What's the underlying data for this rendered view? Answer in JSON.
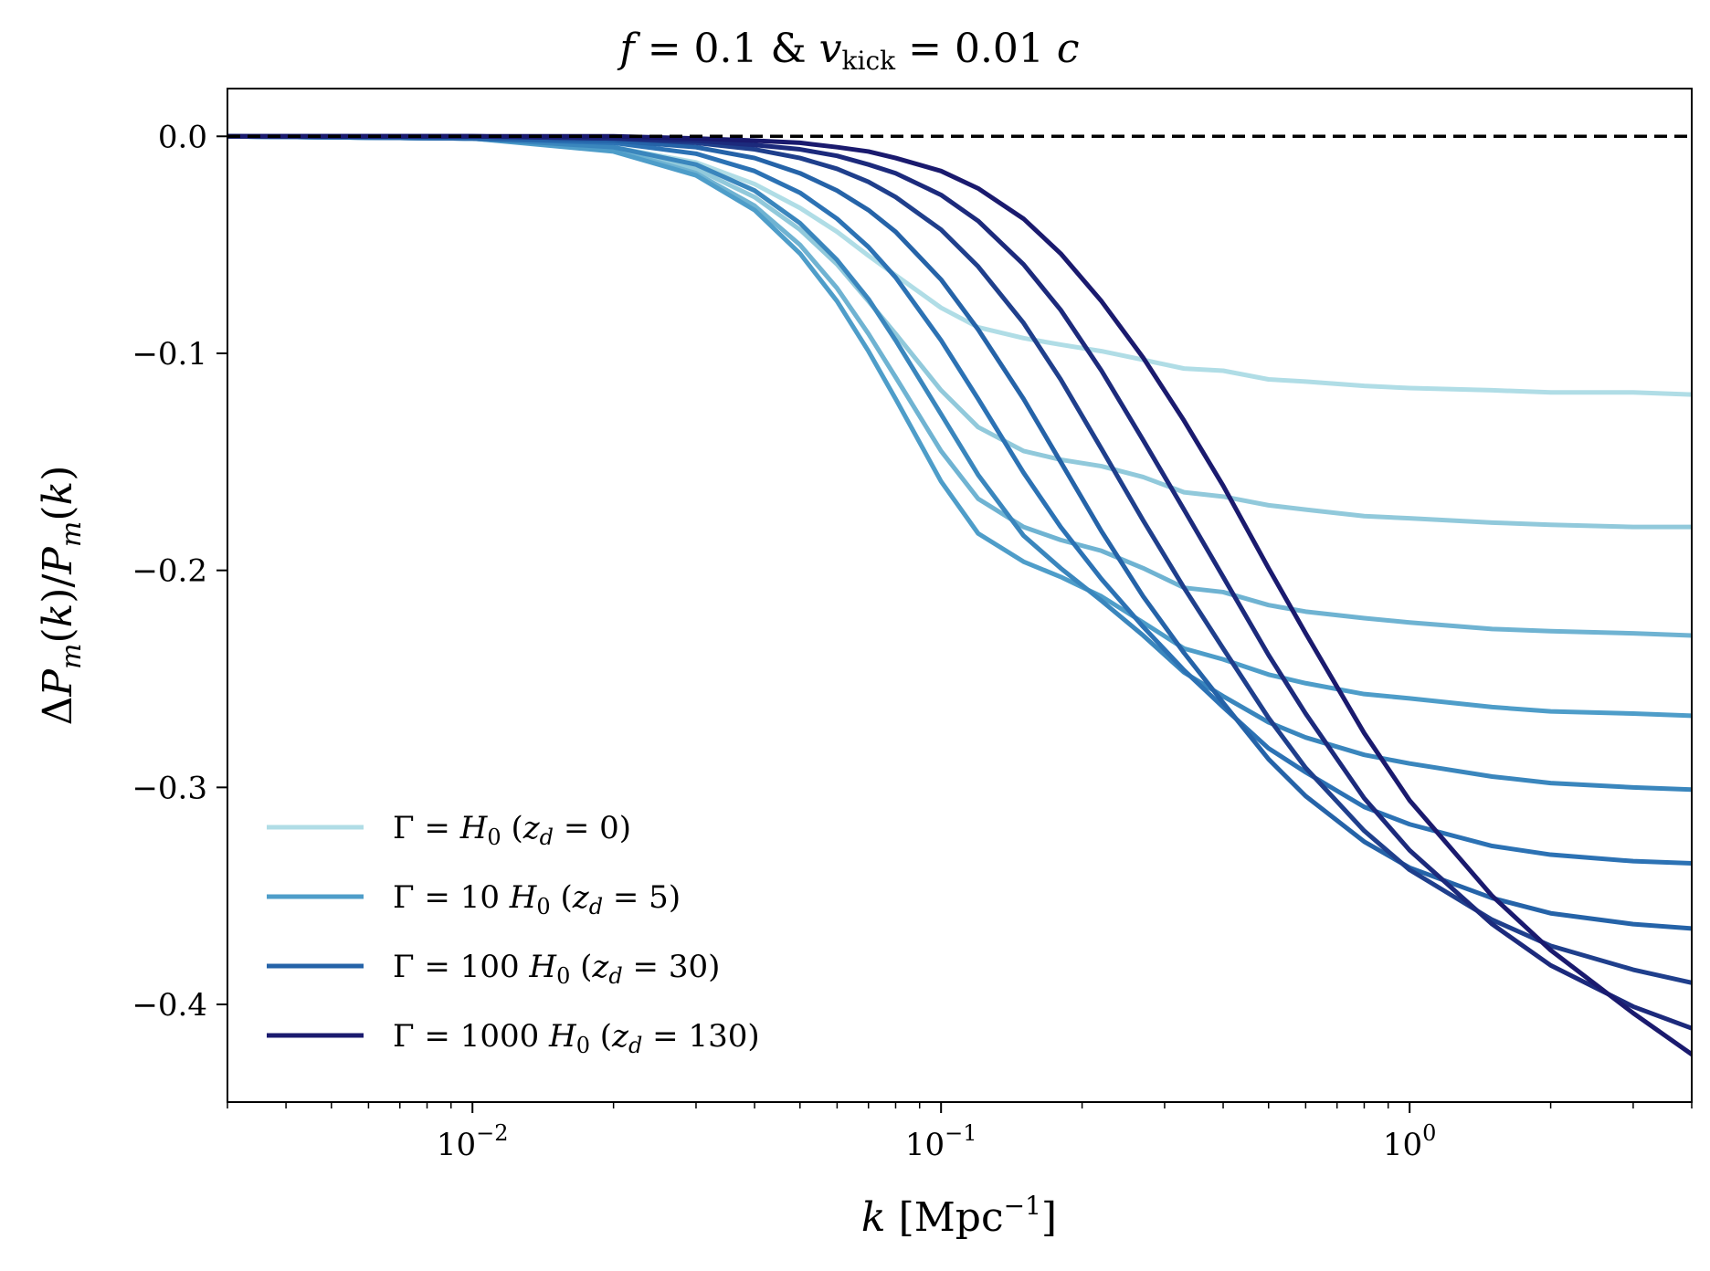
{
  "chart_data": {
    "type": "line",
    "title": "f = 0.1  &  v_kick = 0.01 c",
    "title_parts": [
      "f",
      " = 0.1  &  ",
      "v",
      "kick",
      " = 0.01 ",
      "c"
    ],
    "xlabel": "k [Mpc^-1]",
    "xlabel_parts": [
      "k",
      " [Mpc",
      "−1",
      "]"
    ],
    "ylabel": "ΔP_m(k)/P_m(k)",
    "ylabel_parts": [
      "Δ",
      "P",
      "m",
      "(",
      "k",
      ")/",
      "P",
      "m",
      "(",
      "k",
      ")"
    ],
    "xscale": "log",
    "xlim": [
      0.003,
      4.0
    ],
    "ylim": [
      -0.445,
      0.022
    ],
    "xticks": [
      {
        "value": 0.01,
        "base": "10",
        "exp": "−2"
      },
      {
        "value": 0.1,
        "base": "10",
        "exp": "−1"
      },
      {
        "value": 1,
        "base": "10",
        "exp": "0"
      }
    ],
    "yticks": [
      {
        "value": 0.0,
        "label": "0.0"
      },
      {
        "value": -0.1,
        "label": "−0.1"
      },
      {
        "value": -0.2,
        "label": "−0.2"
      },
      {
        "value": -0.3,
        "label": "−0.3"
      },
      {
        "value": -0.4,
        "label": "−0.4"
      }
    ],
    "reference_line": {
      "y": 0.0,
      "style": "dashed",
      "color": "#000000"
    },
    "grid": false,
    "legend_position": "lower-left",
    "legend": [
      {
        "label": "Γ = H₀ (z_d = 0)",
        "parts": [
          "Γ = ",
          "H",
          "0",
          " (",
          "z",
          "d",
          " = 0)"
        ],
        "color": "#b0dde6"
      },
      {
        "label": "Γ = 10 H₀ (z_d = 5)",
        "parts": [
          "Γ = 10 ",
          "H",
          "0",
          " (",
          "z",
          "d",
          " = 5)"
        ],
        "color": "#4e9dc9"
      },
      {
        "label": "Γ = 100 H₀ (z_d = 30)",
        "parts": [
          "Γ = 100 ",
          "H",
          "0",
          " (",
          "z",
          "d",
          " = 30)"
        ],
        "color": "#2563a8"
      },
      {
        "label": "Γ = 1000 H₀ (z_d = 130)",
        "parts": [
          "Γ = 1000 ",
          "H",
          "0",
          " (",
          "z",
          "d",
          " = 130)"
        ],
        "color": "#1a1a6e"
      }
    ],
    "series": [
      {
        "color": "#b0dde6",
        "x": [
          0.003,
          0.01,
          0.02,
          0.03,
          0.04,
          0.05,
          0.06,
          0.07,
          0.08,
          0.1,
          0.12,
          0.15,
          0.18,
          0.22,
          0.27,
          0.33,
          0.4,
          0.5,
          0.6,
          0.8,
          1.0,
          1.5,
          2.0,
          3.0,
          4.0
        ],
        "y": [
          0,
          -0.001,
          -0.005,
          -0.012,
          -0.022,
          -0.033,
          -0.044,
          -0.055,
          -0.064,
          -0.079,
          -0.088,
          -0.093,
          -0.096,
          -0.099,
          -0.103,
          -0.107,
          -0.108,
          -0.112,
          -0.113,
          -0.115,
          -0.116,
          -0.117,
          -0.118,
          -0.118,
          -0.119
        ]
      },
      {
        "color": "#91c9db",
        "x": [
          0.003,
          0.01,
          0.02,
          0.03,
          0.04,
          0.05,
          0.06,
          0.07,
          0.08,
          0.1,
          0.12,
          0.15,
          0.18,
          0.22,
          0.27,
          0.33,
          0.4,
          0.5,
          0.6,
          0.8,
          1.0,
          1.5,
          2.0,
          3.0,
          4.0
        ],
        "y": [
          0,
          -0.001,
          -0.006,
          -0.015,
          -0.028,
          -0.043,
          -0.059,
          -0.076,
          -0.091,
          -0.117,
          -0.134,
          -0.145,
          -0.149,
          -0.152,
          -0.157,
          -0.164,
          -0.166,
          -0.17,
          -0.172,
          -0.175,
          -0.176,
          -0.178,
          -0.179,
          -0.18,
          -0.18
        ]
      },
      {
        "color": "#6fb3d2",
        "x": [
          0.003,
          0.01,
          0.02,
          0.03,
          0.04,
          0.05,
          0.06,
          0.07,
          0.08,
          0.1,
          0.12,
          0.15,
          0.18,
          0.22,
          0.27,
          0.33,
          0.4,
          0.5,
          0.6,
          0.8,
          1.0,
          1.5,
          2.0,
          3.0,
          4.0
        ],
        "y": [
          0,
          -0.001,
          -0.006,
          -0.017,
          -0.032,
          -0.05,
          -0.07,
          -0.091,
          -0.111,
          -0.145,
          -0.167,
          -0.18,
          -0.186,
          -0.191,
          -0.199,
          -0.208,
          -0.21,
          -0.216,
          -0.219,
          -0.222,
          -0.224,
          -0.227,
          -0.228,
          -0.229,
          -0.23
        ]
      },
      {
        "color": "#4e9dc9",
        "x": [
          0.003,
          0.01,
          0.02,
          0.03,
          0.04,
          0.05,
          0.06,
          0.07,
          0.08,
          0.1,
          0.12,
          0.15,
          0.18,
          0.22,
          0.27,
          0.33,
          0.4,
          0.5,
          0.6,
          0.8,
          1.0,
          1.5,
          2.0,
          3.0,
          4.0
        ],
        "y": [
          0,
          -0.001,
          -0.007,
          -0.018,
          -0.034,
          -0.054,
          -0.076,
          -0.099,
          -0.121,
          -0.159,
          -0.183,
          -0.196,
          -0.203,
          -0.212,
          -0.224,
          -0.236,
          -0.241,
          -0.248,
          -0.252,
          -0.257,
          -0.259,
          -0.263,
          -0.265,
          -0.266,
          -0.267
        ]
      },
      {
        "color": "#3a86bd",
        "x": [
          0.003,
          0.01,
          0.02,
          0.03,
          0.04,
          0.05,
          0.06,
          0.07,
          0.08,
          0.1,
          0.12,
          0.15,
          0.18,
          0.22,
          0.27,
          0.33,
          0.4,
          0.5,
          0.6,
          0.8,
          1.0,
          1.5,
          2.0,
          3.0,
          4.0
        ],
        "y": [
          0,
          -0.001,
          -0.005,
          -0.013,
          -0.025,
          -0.04,
          -0.057,
          -0.075,
          -0.094,
          -0.128,
          -0.156,
          -0.184,
          -0.199,
          -0.214,
          -0.23,
          -0.247,
          -0.258,
          -0.27,
          -0.277,
          -0.285,
          -0.289,
          -0.295,
          -0.298,
          -0.3,
          -0.301
        ]
      },
      {
        "color": "#2c72b4",
        "x": [
          0.003,
          0.01,
          0.02,
          0.03,
          0.04,
          0.05,
          0.06,
          0.07,
          0.08,
          0.1,
          0.12,
          0.15,
          0.18,
          0.22,
          0.27,
          0.33,
          0.4,
          0.5,
          0.6,
          0.8,
          1.0,
          1.5,
          2.0,
          3.0,
          4.0
        ],
        "y": [
          0,
          -0.001,
          -0.003,
          -0.008,
          -0.016,
          -0.026,
          -0.038,
          -0.051,
          -0.065,
          -0.094,
          -0.121,
          -0.155,
          -0.18,
          -0.204,
          -0.226,
          -0.246,
          -0.263,
          -0.282,
          -0.293,
          -0.309,
          -0.317,
          -0.327,
          -0.331,
          -0.334,
          -0.335
        ]
      },
      {
        "color": "#2563a8",
        "x": [
          0.003,
          0.01,
          0.02,
          0.03,
          0.04,
          0.05,
          0.06,
          0.07,
          0.08,
          0.1,
          0.12,
          0.15,
          0.18,
          0.22,
          0.27,
          0.33,
          0.4,
          0.5,
          0.6,
          0.8,
          1.0,
          1.5,
          2.0,
          3.0,
          4.0
        ],
        "y": [
          0,
          -0.001,
          -0.002,
          -0.005,
          -0.01,
          -0.017,
          -0.025,
          -0.034,
          -0.044,
          -0.066,
          -0.089,
          -0.121,
          -0.15,
          -0.182,
          -0.212,
          -0.238,
          -0.261,
          -0.287,
          -0.304,
          -0.325,
          -0.337,
          -0.351,
          -0.358,
          -0.363,
          -0.365
        ]
      },
      {
        "color": "#1f3f8c",
        "x": [
          0.003,
          0.01,
          0.02,
          0.03,
          0.04,
          0.05,
          0.06,
          0.07,
          0.08,
          0.1,
          0.12,
          0.15,
          0.18,
          0.22,
          0.27,
          0.33,
          0.4,
          0.5,
          0.6,
          0.8,
          1.0,
          1.5,
          2.0,
          3.0,
          4.0
        ],
        "y": [
          0,
          0,
          -0.001,
          -0.003,
          -0.006,
          -0.01,
          -0.015,
          -0.021,
          -0.028,
          -0.043,
          -0.06,
          -0.086,
          -0.112,
          -0.144,
          -0.177,
          -0.208,
          -0.236,
          -0.268,
          -0.291,
          -0.32,
          -0.338,
          -0.361,
          -0.373,
          -0.384,
          -0.39
        ]
      },
      {
        "color": "#1c2a7c",
        "x": [
          0.003,
          0.01,
          0.02,
          0.03,
          0.04,
          0.05,
          0.06,
          0.07,
          0.08,
          0.1,
          0.12,
          0.15,
          0.18,
          0.22,
          0.27,
          0.33,
          0.4,
          0.5,
          0.6,
          0.8,
          1.0,
          1.5,
          2.0,
          3.0,
          4.0
        ],
        "y": [
          0,
          0,
          -0.001,
          -0.002,
          -0.004,
          -0.006,
          -0.009,
          -0.013,
          -0.017,
          -0.027,
          -0.039,
          -0.059,
          -0.08,
          -0.108,
          -0.14,
          -0.172,
          -0.203,
          -0.239,
          -0.266,
          -0.305,
          -0.329,
          -0.363,
          -0.382,
          -0.401,
          -0.411
        ]
      },
      {
        "color": "#1a1a6e",
        "x": [
          0.003,
          0.01,
          0.02,
          0.03,
          0.04,
          0.05,
          0.06,
          0.07,
          0.08,
          0.1,
          0.12,
          0.15,
          0.18,
          0.22,
          0.27,
          0.33,
          0.4,
          0.5,
          0.6,
          0.8,
          1.0,
          1.5,
          2.0,
          3.0,
          4.0
        ],
        "y": [
          0,
          0,
          0,
          -0.001,
          -0.002,
          -0.003,
          -0.005,
          -0.007,
          -0.01,
          -0.016,
          -0.024,
          -0.038,
          -0.054,
          -0.076,
          -0.102,
          -0.131,
          -0.161,
          -0.199,
          -0.229,
          -0.275,
          -0.306,
          -0.35,
          -0.375,
          -0.404,
          -0.423
        ]
      }
    ]
  }
}
